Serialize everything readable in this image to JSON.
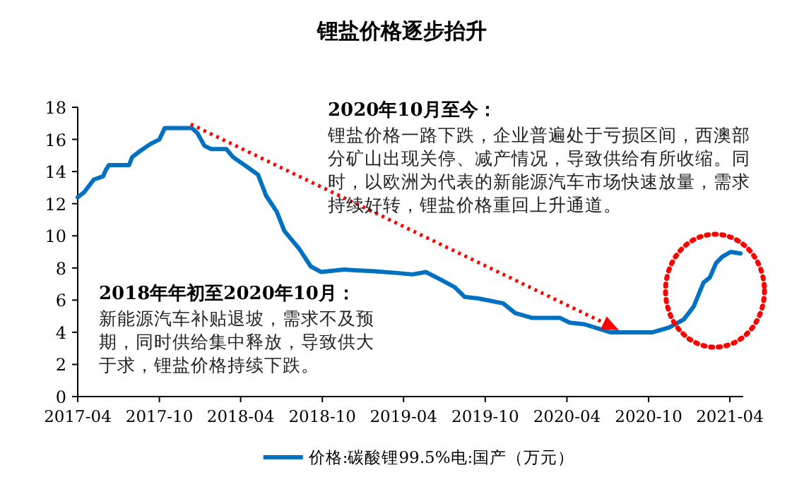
{
  "chart_data": {
    "type": "line",
    "title": "锂盐价格逐步抬升",
    "x": [
      "2017-04-01",
      "2017-04-15",
      "2017-05-07",
      "2017-05-28",
      "2017-06-03",
      "2017-06-10",
      "2017-07-25",
      "2017-08-01",
      "2017-08-20",
      "2017-09-10",
      "2017-10-01",
      "2017-10-13",
      "2017-12-13",
      "2017-12-25",
      "2018-01-10",
      "2018-01-25",
      "2018-02-28",
      "2018-03-15",
      "2018-04-15",
      "2018-05-10",
      "2018-05-28",
      "2018-06-21",
      "2018-07-08",
      "2018-08-10",
      "2018-09-05",
      "2018-09-28",
      "2018-11-18",
      "2019-01-21",
      "2019-03-13",
      "2019-04-21",
      "2019-05-21",
      "2019-06-25",
      "2019-07-25",
      "2019-08-16",
      "2019-09-16",
      "2019-11-10",
      "2019-12-07",
      "2020-01-13",
      "2020-03-16",
      "2020-04-07",
      "2020-05-10",
      "2020-07-07",
      "2020-10-10",
      "2020-11-16",
      "2020-12-19",
      "2021-01-10",
      "2021-02-01",
      "2021-02-15",
      "2021-03-01",
      "2021-03-15",
      "2021-04-03",
      "2021-04-25"
    ],
    "series": [
      {
        "name": "价格:碳酸锂99.5%电:国产（万元）",
        "color": "#0070c0",
        "values": [
          12.4,
          12.7,
          13.5,
          13.7,
          14.1,
          14.4,
          14.4,
          14.9,
          15.3,
          15.7,
          16.0,
          16.7,
          16.7,
          16.4,
          15.6,
          15.4,
          15.4,
          14.9,
          14.3,
          13.8,
          12.5,
          11.5,
          10.3,
          9.2,
          8.1,
          7.75,
          7.9,
          7.8,
          7.7,
          7.6,
          7.75,
          7.25,
          6.8,
          6.2,
          6.1,
          5.8,
          5.2,
          4.9,
          4.9,
          4.6,
          4.5,
          4.0,
          4.0,
          4.3,
          4.8,
          5.6,
          7.1,
          7.4,
          8.3,
          8.7,
          9.0,
          8.9
        ]
      }
    ],
    "xlim": [
      "2017-04-01",
      "2021-05-01"
    ],
    "xticks": [
      "2017-04",
      "2017-10",
      "2018-04",
      "2018-10",
      "2019-04",
      "2019-10",
      "2020-04",
      "2020-10",
      "2021-04"
    ],
    "ylim": [
      0,
      18
    ],
    "yticks": [
      0,
      2,
      4,
      6,
      8,
      10,
      12,
      14,
      16,
      18
    ],
    "grid": false,
    "legend": "bottom",
    "marker": "none",
    "line_style": "solid",
    "annotations": [
      "2020年10月至今：",
      "锂盐价格一路下跌，企业普遍处于亏损区间，西澳部分矿山出现关停、减产情况，导致供给有所收缩。同时，以欧洲为代表的新能源汽车市场快速放量，需求持续好转，锂盐价格重回上升通道。",
      "2018年年初至2020年10月：",
      "新能源汽车补贴退坡，需求不及预期，同时供给集中释放，导致供大于求，锂盐价格持续下跌。"
    ]
  }
}
